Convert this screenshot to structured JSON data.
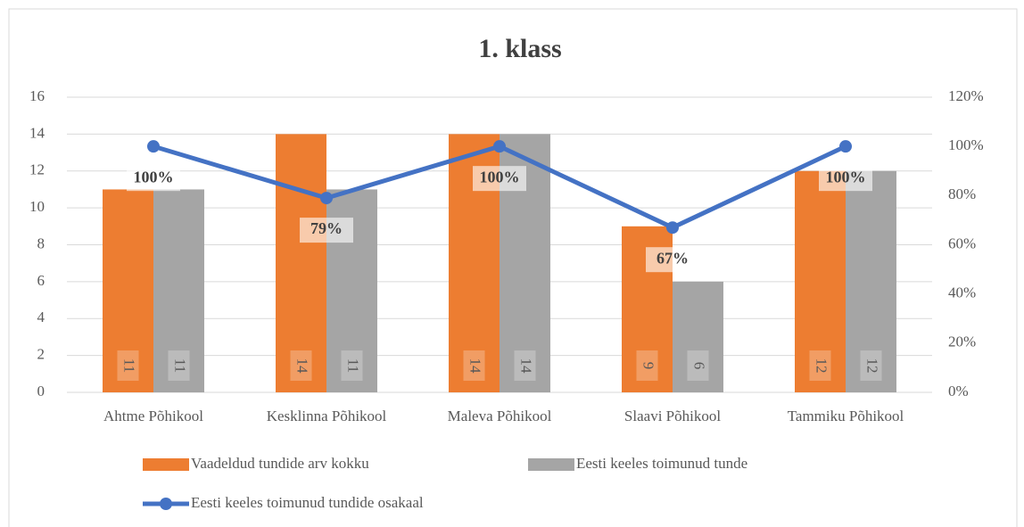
{
  "chart_data": {
    "type": "combo",
    "title": "1. klass",
    "categories": [
      "Ahtme Põhikool",
      "Kesklinna Põhikool",
      "Maleva Põhikool",
      "Slaavi Põhikool",
      "Tammiku Põhikool"
    ],
    "series": [
      {
        "name": "Vaadeldud tundide arv kokku",
        "type": "bar",
        "color": "#ed7d31",
        "values": [
          11,
          14,
          14,
          9,
          12
        ]
      },
      {
        "name": "Eesti keeles toimunud tunde",
        "type": "bar",
        "color": "#a5a5a5",
        "values": [
          11,
          11,
          14,
          6,
          12
        ]
      },
      {
        "name": "Eesti keeles toimunud tundide osakaal",
        "type": "line",
        "axis": "y2",
        "color": "#4472c4",
        "values": [
          100,
          79,
          100,
          67,
          100
        ],
        "value_labels": [
          "100%",
          "79%",
          "100%",
          "67%",
          "100%"
        ]
      }
    ],
    "ylim": [
      0,
      16
    ],
    "yticks": [
      0,
      2,
      4,
      6,
      8,
      10,
      12,
      14,
      16
    ],
    "y2lim": [
      0,
      120
    ],
    "y2ticks": [
      {
        "value": 0,
        "label": "0%"
      },
      {
        "value": 20,
        "label": "20%"
      },
      {
        "value": 40,
        "label": "40%"
      },
      {
        "value": 60,
        "label": "60%"
      },
      {
        "value": 80,
        "label": "80%"
      },
      {
        "value": 100,
        "label": "100%"
      },
      {
        "value": 120,
        "label": "120%"
      }
    ],
    "grid": true
  }
}
